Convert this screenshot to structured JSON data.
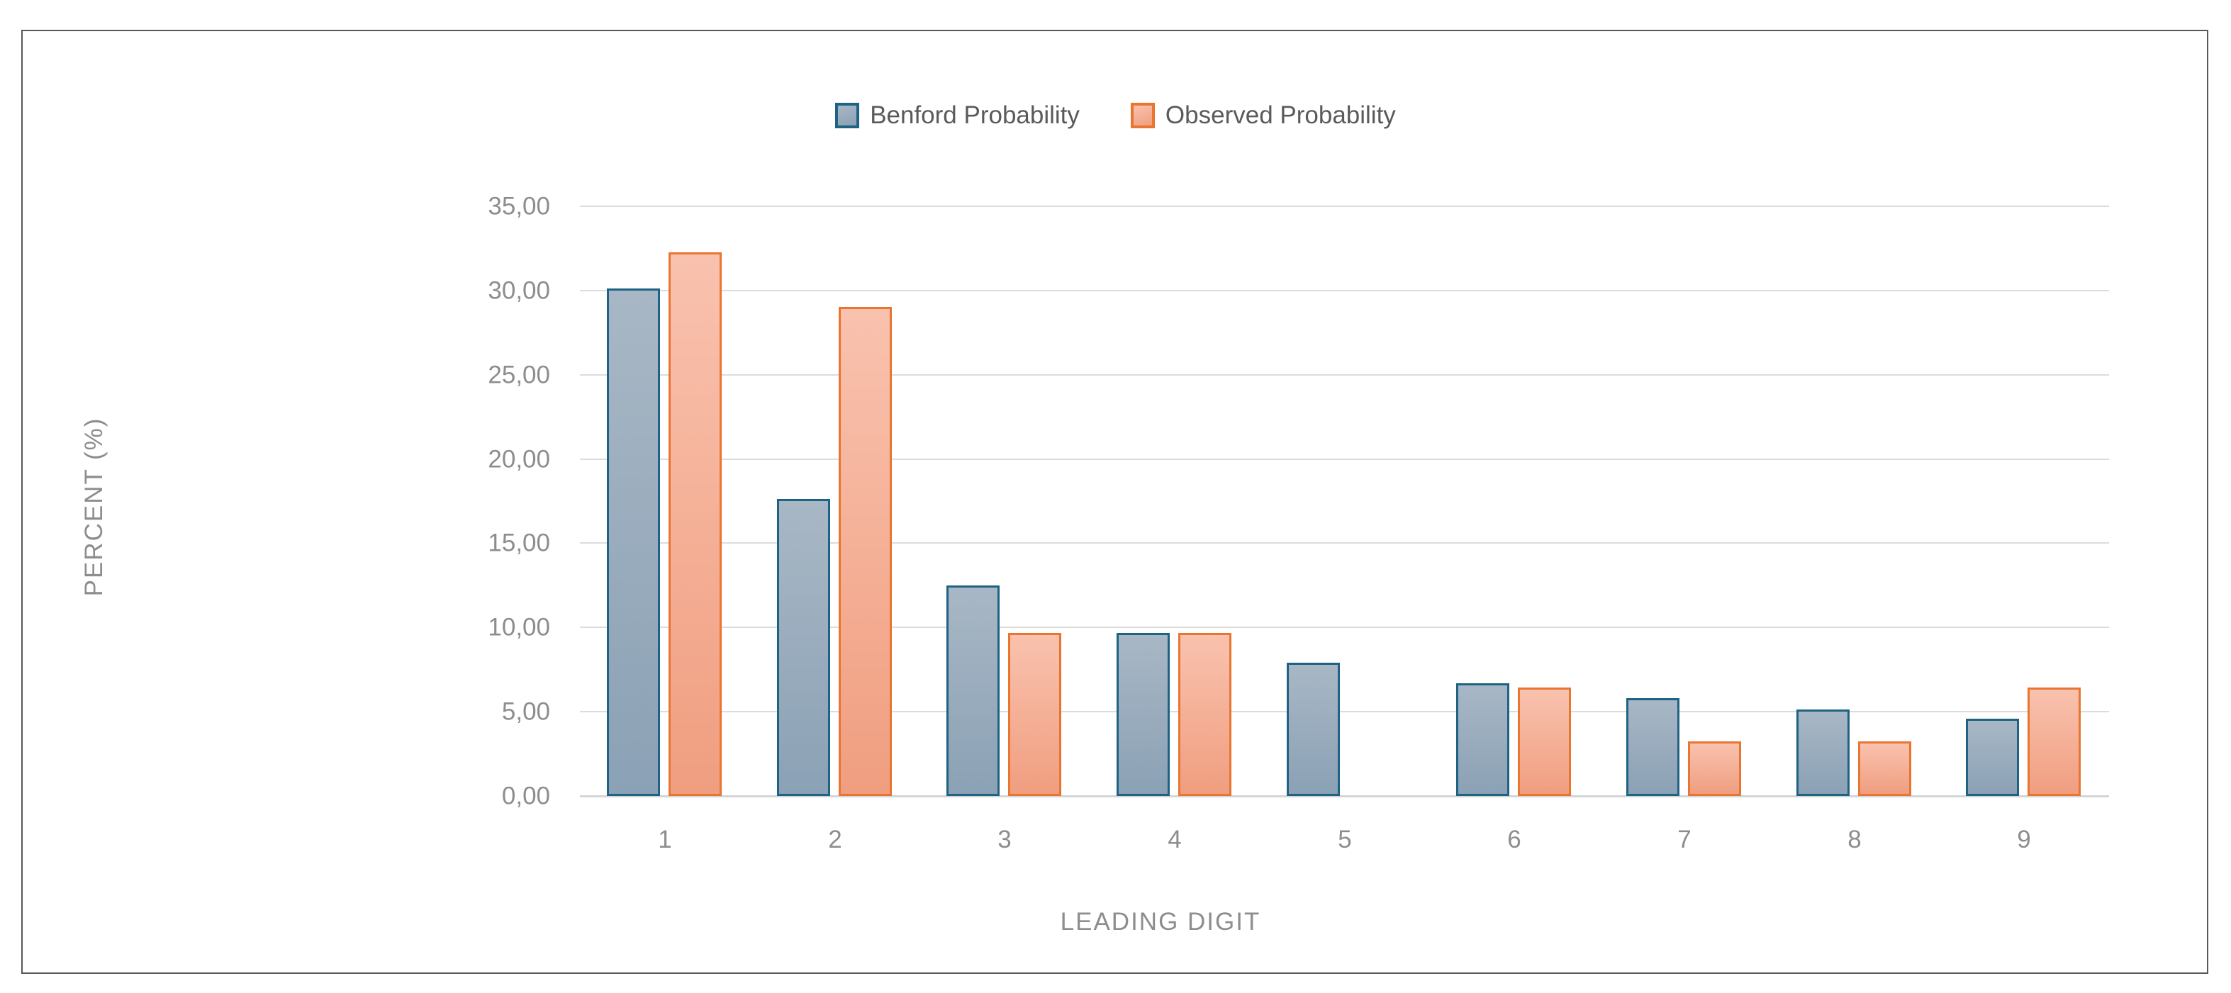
{
  "legend": {
    "items": [
      {
        "label": "Benford Probability"
      },
      {
        "label": "Observed Probability"
      }
    ]
  },
  "y_axis": {
    "title": "PERCENT (%)",
    "tick_labels": [
      "35,00",
      "30,00",
      "25,00",
      "20,00",
      "15,00",
      "10,00",
      "5,00",
      "0,00"
    ]
  },
  "x_axis": {
    "title": "LEADING DIGIT",
    "tick_labels": [
      "1",
      "2",
      "3",
      "4",
      "5",
      "6",
      "7",
      "8",
      "9"
    ]
  },
  "chart_data": {
    "type": "bar",
    "categories": [
      "1",
      "2",
      "3",
      "4",
      "5",
      "6",
      "7",
      "8",
      "9"
    ],
    "series": [
      {
        "name": "Benford Probability",
        "values": [
          30.1,
          17.61,
          12.49,
          9.69,
          7.92,
          6.69,
          5.8,
          5.12,
          4.58
        ],
        "fill_top": "#a8b7c5",
        "fill_bottom": "#8ba1b5",
        "border": "#1f6384"
      },
      {
        "name": "Observed Probability",
        "values": [
          32.26,
          29.03,
          9.68,
          9.68,
          0.0,
          6.45,
          3.23,
          3.23,
          6.45
        ],
        "fill_top": "#f9c2ae",
        "fill_bottom": "#f09e80",
        "border": "#e97531"
      }
    ],
    "title": "",
    "xlabel": "LEADING DIGIT",
    "ylabel": "PERCENT (%)",
    "ylim": [
      0,
      35
    ],
    "ytick_step": 5,
    "grid": true,
    "legend_position": "top",
    "number_format": "comma-decimal",
    "gridline_color": "#dcdcde",
    "frame_border_color": "#57585a",
    "tick_text_color": "#8b8d8f",
    "legend_text_color": "#595a5c"
  }
}
